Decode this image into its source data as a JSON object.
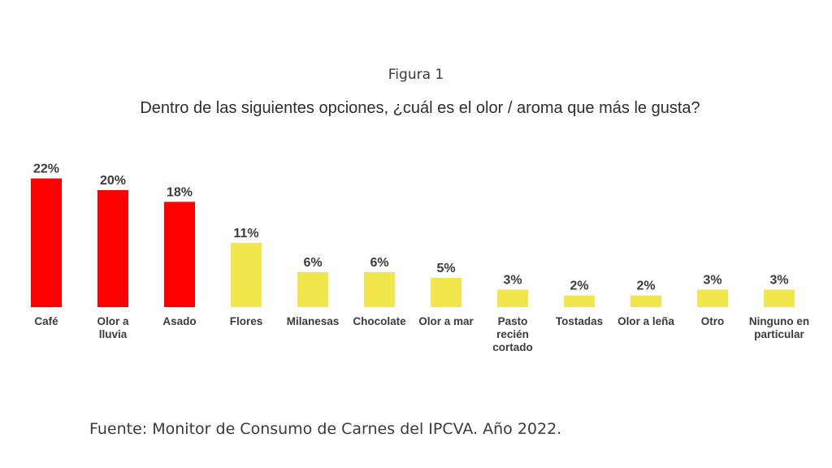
{
  "figure_label": "Figura 1",
  "chart_data": {
    "type": "bar",
    "title": "Dentro de las siguientes opciones, ¿cuál es el olor / aroma que más le gusta?",
    "categories": [
      "Café",
      "Olor a lluvia",
      "Asado",
      "Flores",
      "Milanesas",
      "Chocolate",
      "Olor a mar",
      "Pasto recién cortado",
      "Tostadas",
      "Olor a leña",
      "Otro",
      "Ninguno en particular"
    ],
    "category_lines": [
      [
        "Café"
      ],
      [
        "Olor a",
        "lluvia"
      ],
      [
        "Asado"
      ],
      [
        "Flores"
      ],
      [
        "Milanesas"
      ],
      [
        "Chocolate"
      ],
      [
        "Olor a mar"
      ],
      [
        "Pasto",
        "recién",
        "cortado"
      ],
      [
        "Tostadas"
      ],
      [
        "Olor a leña"
      ],
      [
        "Otro"
      ],
      [
        "Ninguno en",
        "particular"
      ]
    ],
    "values": [
      22,
      20,
      18,
      11,
      6,
      6,
      5,
      3,
      2,
      2,
      3,
      3
    ],
    "value_labels": [
      "22%",
      "20%",
      "18%",
      "11%",
      "6%",
      "6%",
      "5%",
      "3%",
      "2%",
      "2%",
      "3%",
      "3%"
    ],
    "unit": "%",
    "highlight_count": 3,
    "colors": {
      "highlight": "#ff0000",
      "default": "#f2e64d"
    },
    "grid": false,
    "legend": "none"
  },
  "source_note": "Fuente: Monitor de Consumo de Carnes del IPCVA. Año 2022."
}
